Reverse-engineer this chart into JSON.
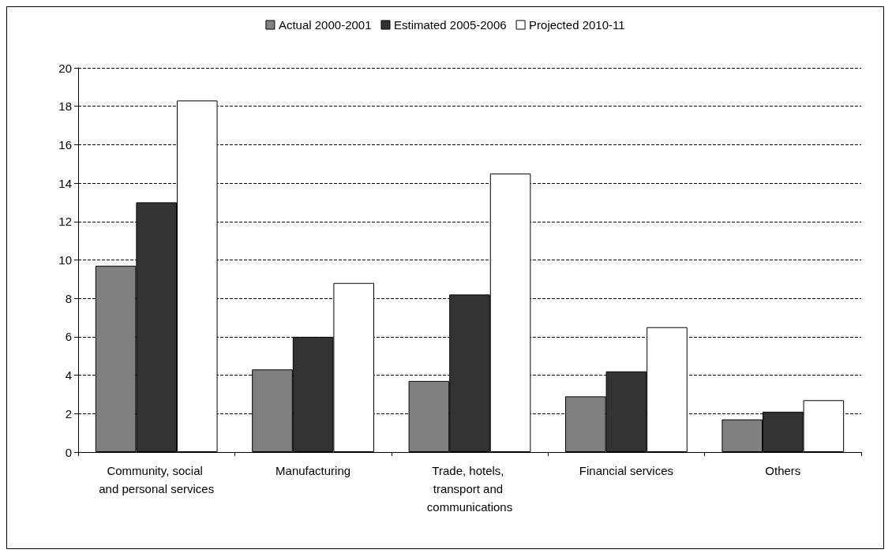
{
  "chart_data": {
    "type": "bar",
    "categories": [
      "Community, social and personal services",
      "Manufacturing",
      "Trade, hotels, transport and communications",
      "Financial services",
      "Others"
    ],
    "series": [
      {
        "name": "Actual 2000-2001",
        "color": "#808080",
        "values": [
          9.7,
          4.3,
          3.7,
          2.9,
          1.7
        ]
      },
      {
        "name": "Estimated 2005-2006",
        "color": "#333333",
        "values": [
          13.0,
          6.0,
          8.2,
          4.2,
          2.1
        ]
      },
      {
        "name": "Projected 2010-11",
        "color": "#ffffff",
        "values": [
          18.3,
          8.8,
          14.5,
          6.5,
          2.7
        ]
      }
    ],
    "ylim": [
      0,
      20
    ],
    "yticks": [
      0,
      2,
      4,
      6,
      8,
      10,
      12,
      14,
      16,
      18,
      20
    ],
    "grid": "y",
    "line_style": "dashed",
    "legend": "top"
  }
}
